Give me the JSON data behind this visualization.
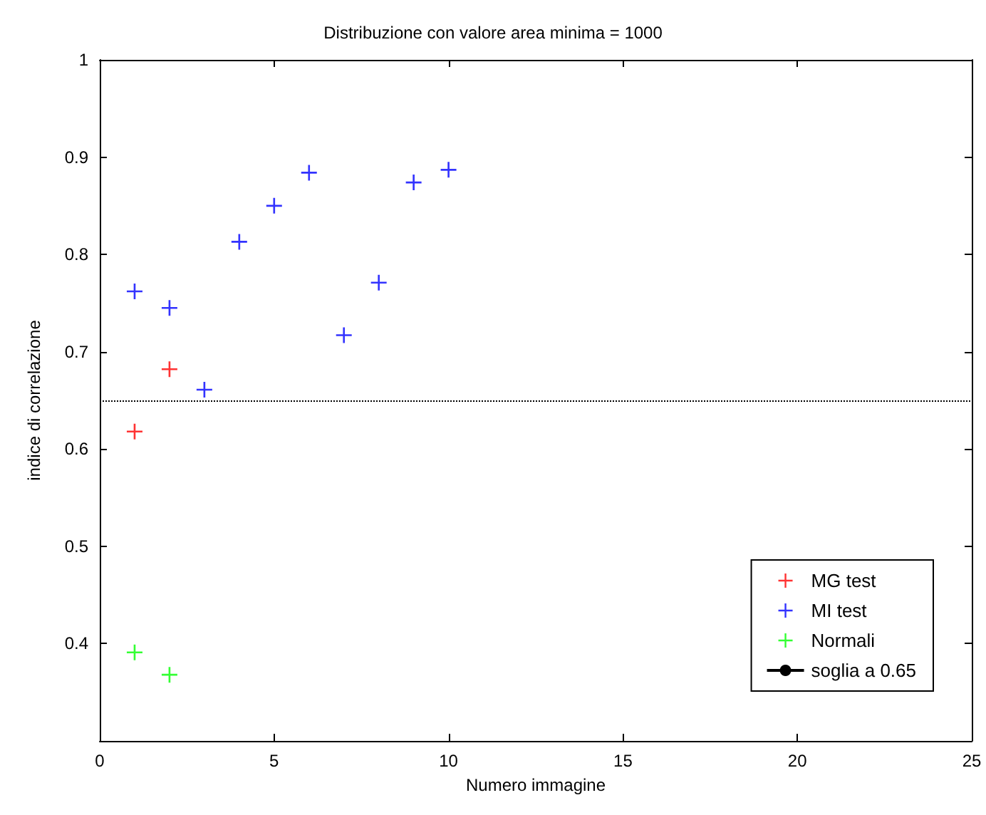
{
  "chart_data": {
    "type": "scatter",
    "title": "Distribuzione con valore area minima = 1000",
    "xlabel": "Numero immagine",
    "ylabel": "indice di correlazione",
    "series": [
      {
        "name": "MG test",
        "color": "#ff0000",
        "x": [
          1,
          2
        ],
        "values": [
          0.618,
          0.682
        ]
      },
      {
        "name": "MI test",
        "color": "#0000ff",
        "x": [
          1,
          2,
          3,
          4,
          5,
          6,
          7,
          8,
          9,
          10
        ],
        "values": [
          0.762,
          0.745,
          0.661,
          0.813,
          0.85,
          0.884,
          0.717,
          0.771,
          0.874,
          0.887
        ]
      },
      {
        "name": "Normali",
        "color": "#00ff00",
        "x": [
          1,
          2
        ],
        "values": [
          0.391,
          0.368
        ]
      }
    ],
    "ref_lines": [
      {
        "axis": "y",
        "value": 0.65,
        "label": "soglia a 0.65",
        "color": "#000000",
        "line_style": "dotted"
      }
    ],
    "xlim": [
      0,
      25
    ],
    "xticks": [
      0,
      5,
      10,
      15,
      20,
      25
    ],
    "ylim": [
      0.3,
      1
    ],
    "yticks": [
      0.4,
      0.5,
      0.6,
      0.7,
      0.8,
      0.9,
      1
    ],
    "marker": "cross",
    "legend": "bottom right",
    "grid": false
  }
}
